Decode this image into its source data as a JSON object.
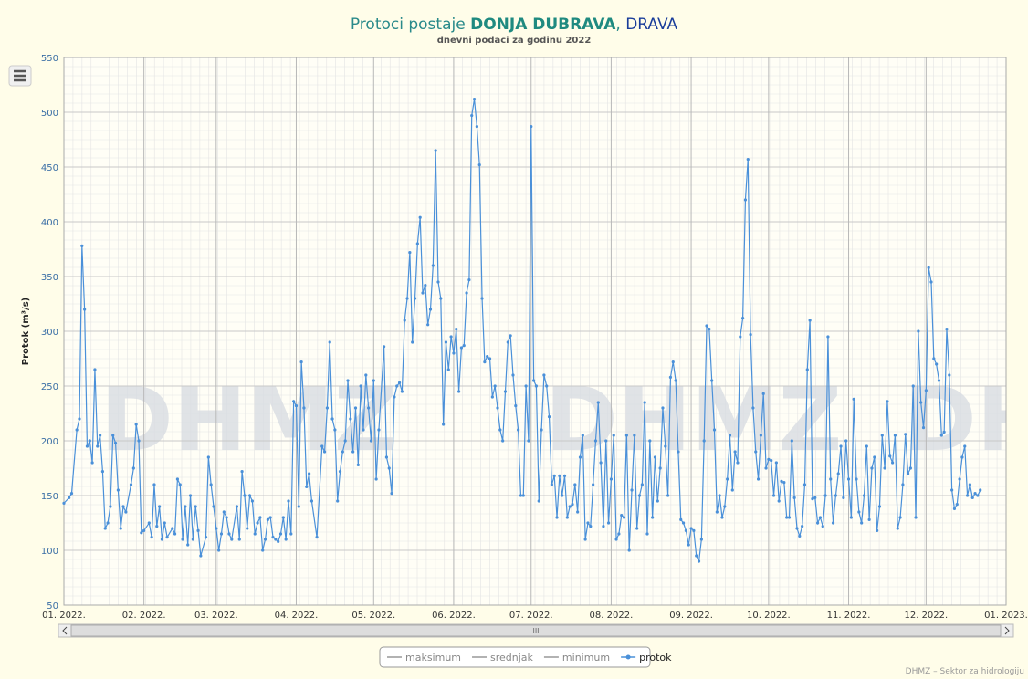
{
  "chart_data": {
    "type": "line",
    "title_parts": [
      "Protoci postaje ",
      "DONJA DUBRAVA",
      ", ",
      "DRAVA"
    ],
    "subtitle": "dnevni podaci za godinu 2022",
    "y_label": "Protok (m³/s)",
    "watermark": "DHMZ",
    "credit": "DHMZ – Sektor za hidrologiju",
    "scrollbar_grip": "III",
    "xlim": [
      0,
      365
    ],
    "xticks": [
      {
        "value": 0,
        "label": "01. 2022."
      },
      {
        "value": 31,
        "label": "02. 2022."
      },
      {
        "value": 59,
        "label": "03. 2022."
      },
      {
        "value": 90,
        "label": "04. 2022."
      },
      {
        "value": 120,
        "label": "05. 2022."
      },
      {
        "value": 151,
        "label": "06. 2022."
      },
      {
        "value": 181,
        "label": "07. 2022."
      },
      {
        "value": 212,
        "label": "08. 2022."
      },
      {
        "value": 243,
        "label": "09. 2022."
      },
      {
        "value": 273,
        "label": "10. 2022."
      },
      {
        "value": 304,
        "label": "11. 2022."
      },
      {
        "value": 334,
        "label": "12. 2022."
      },
      {
        "value": 365,
        "label": "01. 2023."
      }
    ],
    "ylim": [
      50,
      550
    ],
    "yticks": [
      50,
      100,
      150,
      200,
      250,
      300,
      350,
      400,
      450,
      500,
      550
    ],
    "grid": true,
    "x": [
      0,
      2,
      3,
      5,
      6,
      7,
      8,
      9,
      10,
      11,
      12,
      13,
      14,
      15,
      16,
      17,
      18,
      19,
      20,
      21,
      22,
      23,
      24,
      26,
      27,
      28,
      29,
      30,
      31,
      33,
      34,
      35,
      36,
      37,
      38,
      39,
      40,
      42,
      43,
      44,
      45,
      46,
      47,
      48,
      49,
      50,
      51,
      52,
      53,
      55,
      56,
      57,
      58,
      59,
      60,
      61,
      62,
      63,
      64,
      65,
      67,
      68,
      69,
      70,
      71,
      72,
      73,
      74,
      75,
      76,
      77,
      78,
      79,
      80,
      81,
      82,
      83,
      84,
      85,
      86,
      87,
      88,
      89,
      90,
      91,
      92,
      93,
      94,
      95,
      96,
      98,
      100,
      101,
      102,
      103,
      104,
      105,
      106,
      107,
      108,
      109,
      110,
      111,
      112,
      113,
      114,
      115,
      116,
      117,
      118,
      119,
      120,
      121,
      122,
      124,
      125,
      126,
      127,
      128,
      129,
      130,
      131,
      132,
      133,
      134,
      135,
      136,
      137,
      138,
      139,
      140,
      141,
      142,
      143,
      144,
      145,
      146,
      147,
      148,
      149,
      150,
      151,
      152,
      153,
      154,
      155,
      156,
      157,
      158,
      159,
      160,
      161,
      162,
      163,
      164,
      165,
      166,
      167,
      168,
      169,
      170,
      171,
      172,
      173,
      174,
      175,
      176,
      177,
      178,
      179,
      180,
      181,
      182,
      183,
      184,
      185,
      186,
      187,
      188,
      189,
      190,
      191,
      192,
      193,
      194,
      195,
      196,
      197,
      198,
      199,
      200,
      201,
      202,
      203,
      204,
      205,
      206,
      207,
      208,
      209,
      210,
      211,
      212,
      213,
      214,
      215,
      216,
      217,
      218,
      219,
      220,
      221,
      222,
      223,
      224,
      225,
      226,
      227,
      228,
      229,
      230,
      231,
      232,
      233,
      234,
      235,
      236,
      237,
      238,
      239,
      240,
      241,
      242,
      243,
      244,
      245,
      246,
      247,
      248,
      249,
      250,
      251,
      252,
      253,
      254,
      255,
      256,
      257,
      258,
      259,
      260,
      261,
      262,
      263,
      264,
      265,
      266,
      267,
      268,
      269,
      270,
      271,
      272,
      273,
      274,
      275,
      276,
      277,
      278,
      279,
      280,
      281,
      282,
      283,
      284,
      285,
      286,
      287,
      288,
      289,
      290,
      291,
      292,
      293,
      294,
      295,
      296,
      297,
      298,
      299,
      300,
      301,
      302,
      303,
      304,
      305,
      306,
      307,
      308,
      309,
      310,
      311,
      312,
      313,
      314,
      315,
      316,
      317,
      318,
      319,
      320,
      321,
      322,
      323,
      324,
      325,
      326,
      327,
      328,
      329,
      330,
      331,
      332,
      333,
      334,
      335,
      336,
      337,
      338,
      339,
      340,
      341,
      342,
      343,
      344,
      345,
      346,
      347,
      348,
      349,
      350,
      351,
      352,
      353,
      354,
      355
    ],
    "series": [
      {
        "name": "maksimum",
        "color": "#999999",
        "visible": false
      },
      {
        "name": "srednjak",
        "color": "#999999",
        "visible": false
      },
      {
        "name": "minimum",
        "color": "#999999",
        "visible": false
      },
      {
        "name": "protok",
        "color": "#4a90d9",
        "visible": true,
        "values": [
          143,
          148,
          152,
          210,
          220,
          378,
          320,
          195,
          200,
          180,
          265,
          195,
          205,
          172,
          120,
          125,
          140,
          205,
          198,
          155,
          120,
          140,
          135,
          160,
          175,
          215,
          200,
          116,
          118,
          125,
          112,
          160,
          122,
          140,
          110,
          125,
          112,
          120,
          115,
          165,
          160,
          110,
          140,
          105,
          150,
          110,
          140,
          118,
          95,
          112,
          185,
          160,
          140,
          120,
          100,
          115,
          135,
          130,
          115,
          110,
          140,
          110,
          172,
          150,
          120,
          150,
          145,
          115,
          125,
          130,
          100,
          110,
          128,
          130,
          112,
          110,
          108,
          115,
          130,
          110,
          145,
          115,
          236,
          232,
          140,
          272,
          230,
          158,
          170,
          145,
          112,
          195,
          190,
          230,
          290,
          220,
          210,
          145,
          172,
          190,
          200,
          255,
          220,
          190,
          230,
          178,
          250,
          210,
          260,
          230,
          200,
          255,
          165,
          210,
          286,
          185,
          175,
          152,
          240,
          250,
          253,
          245,
          310,
          330,
          372,
          290,
          330,
          380,
          404,
          335,
          342,
          306,
          320,
          360,
          465,
          345,
          330,
          215,
          290,
          265,
          295,
          280,
          302,
          245,
          285,
          287,
          335,
          347,
          497,
          512,
          487,
          452,
          330,
          272,
          277,
          275,
          240,
          250,
          230,
          210,
          200,
          245,
          290,
          296,
          260,
          232,
          210,
          150,
          150,
          250,
          200,
          487,
          255,
          250,
          145,
          210,
          260,
          250,
          222,
          160,
          168,
          130,
          168,
          150,
          168,
          130,
          140,
          142,
          160,
          135,
          185,
          205,
          110,
          125,
          122,
          160,
          200,
          235,
          180,
          122,
          200,
          125,
          165,
          205,
          110,
          115,
          132,
          130,
          205,
          100,
          155,
          205,
          120,
          150,
          160,
          235,
          115,
          200,
          130,
          185,
          145,
          175,
          230,
          195,
          150,
          258,
          272,
          255,
          190,
          128,
          125,
          118,
          105,
          120,
          118,
          95,
          90,
          110,
          200,
          305,
          302,
          255,
          210,
          135,
          150,
          130,
          140,
          165,
          205,
          155,
          190,
          180,
          295,
          312,
          420,
          457,
          297,
          230,
          190,
          165,
          205,
          243,
          175,
          183,
          182,
          150,
          180,
          145,
          163,
          162,
          130,
          130,
          200,
          148,
          120,
          113,
          122,
          160,
          265,
          310,
          147,
          148,
          125,
          130,
          122,
          150,
          295,
          165,
          125,
          150,
          170,
          195,
          148,
          200,
          165,
          130,
          238,
          165,
          135,
          125,
          150,
          195,
          128,
          175,
          185,
          118,
          140,
          205,
          175,
          236,
          186,
          180,
          205,
          120,
          130,
          160,
          206,
          170,
          175,
          250,
          130,
          300,
          235,
          212,
          246,
          358,
          345,
          275,
          270,
          255,
          205,
          208,
          302,
          260,
          155,
          138,
          142,
          165,
          185,
          195,
          150,
          160,
          148,
          152,
          150,
          155
        ]
      }
    ]
  }
}
